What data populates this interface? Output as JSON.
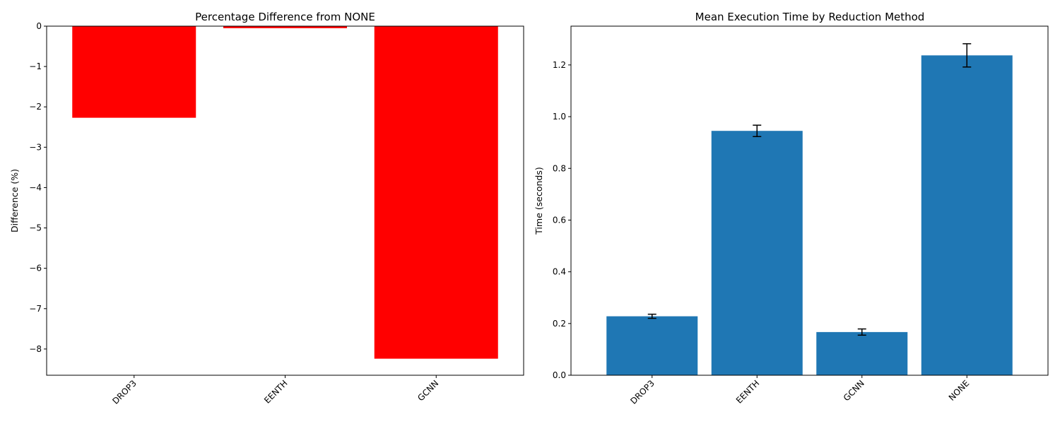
{
  "chart_data": [
    {
      "type": "bar",
      "title": "Percentage Difference from NONE",
      "xlabel": "",
      "ylabel": "Difference (%)",
      "categories": [
        "DROP3",
        "EENTH",
        "GCNN"
      ],
      "values": [
        -2.27,
        -0.05,
        -8.24
      ],
      "ylim": [
        -8.65,
        0
      ],
      "yticks": [
        0,
        -1,
        -2,
        -3,
        -4,
        -5,
        -6,
        -7,
        -8
      ],
      "ytick_labels": [
        "0",
        "−1",
        "−2",
        "−3",
        "−4",
        "−5",
        "−6",
        "−7",
        "−8"
      ],
      "bar_color": "#ff0000",
      "grid": false
    },
    {
      "type": "bar",
      "title": "Mean Execution Time by Reduction Method",
      "xlabel": "",
      "ylabel": "Time (seconds)",
      "categories": [
        "DROP3",
        "EENTH",
        "GCNN",
        "NONE"
      ],
      "values": [
        0.228,
        0.945,
        0.167,
        1.237
      ],
      "errors": [
        0.008,
        0.022,
        0.012,
        0.045
      ],
      "ylim": [
        0,
        1.35
      ],
      "yticks": [
        0.0,
        0.2,
        0.4,
        0.6,
        0.8,
        1.0,
        1.2
      ],
      "ytick_labels": [
        "0.0",
        "0.2",
        "0.4",
        "0.6",
        "0.8",
        "1.0",
        "1.2"
      ],
      "bar_color": "#1f77b4",
      "grid": false
    }
  ]
}
